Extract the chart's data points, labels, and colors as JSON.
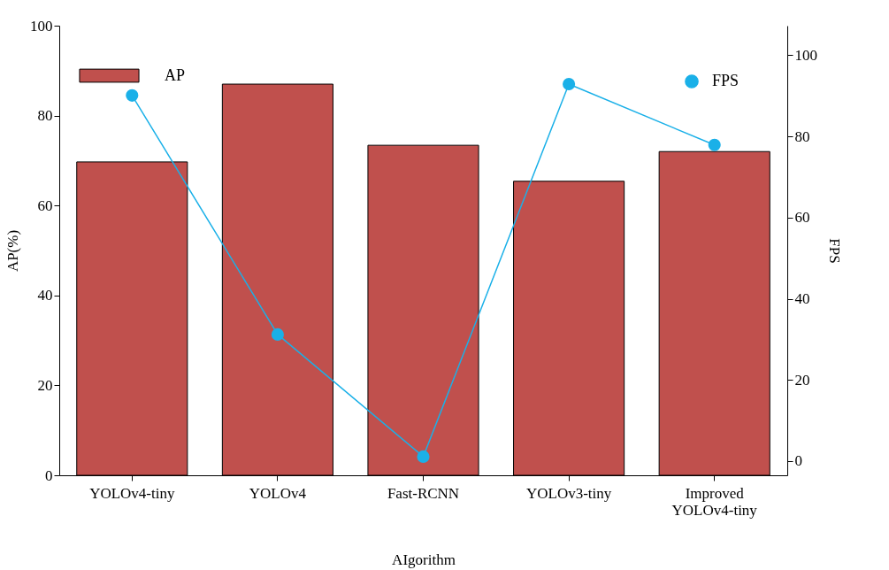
{
  "chart_data": {
    "type": "bar",
    "xlabel": "AIgorithm",
    "ylabel": "AP(%)",
    "y2label": "FPS",
    "categories": [
      "YOLOv4-tiny",
      "YOLOv4",
      "Fast-RCNN",
      "YOLOv3-tiny",
      "Improved YOLOv4-tiny"
    ],
    "series": [
      {
        "name": "AP",
        "color": "#c0504d",
        "values": [
          69.7,
          87.0,
          73.4,
          65.4,
          72.0
        ]
      },
      {
        "name": "FPS",
        "type": "line",
        "axis": "y2",
        "color": "#1ab0e8",
        "values": [
          90.1,
          31.2,
          1.1,
          92.9,
          77.9
        ]
      }
    ],
    "ylim": [
      0,
      100
    ],
    "yticks": [
      0,
      20,
      40,
      60,
      80,
      100
    ],
    "y2lim": [
      -3.5,
      107.3
    ],
    "y2ticks": [
      0,
      20,
      40,
      60,
      80,
      100
    ],
    "legend": "top",
    "marker": "circle",
    "line_style": "solid",
    "grid": false
  }
}
